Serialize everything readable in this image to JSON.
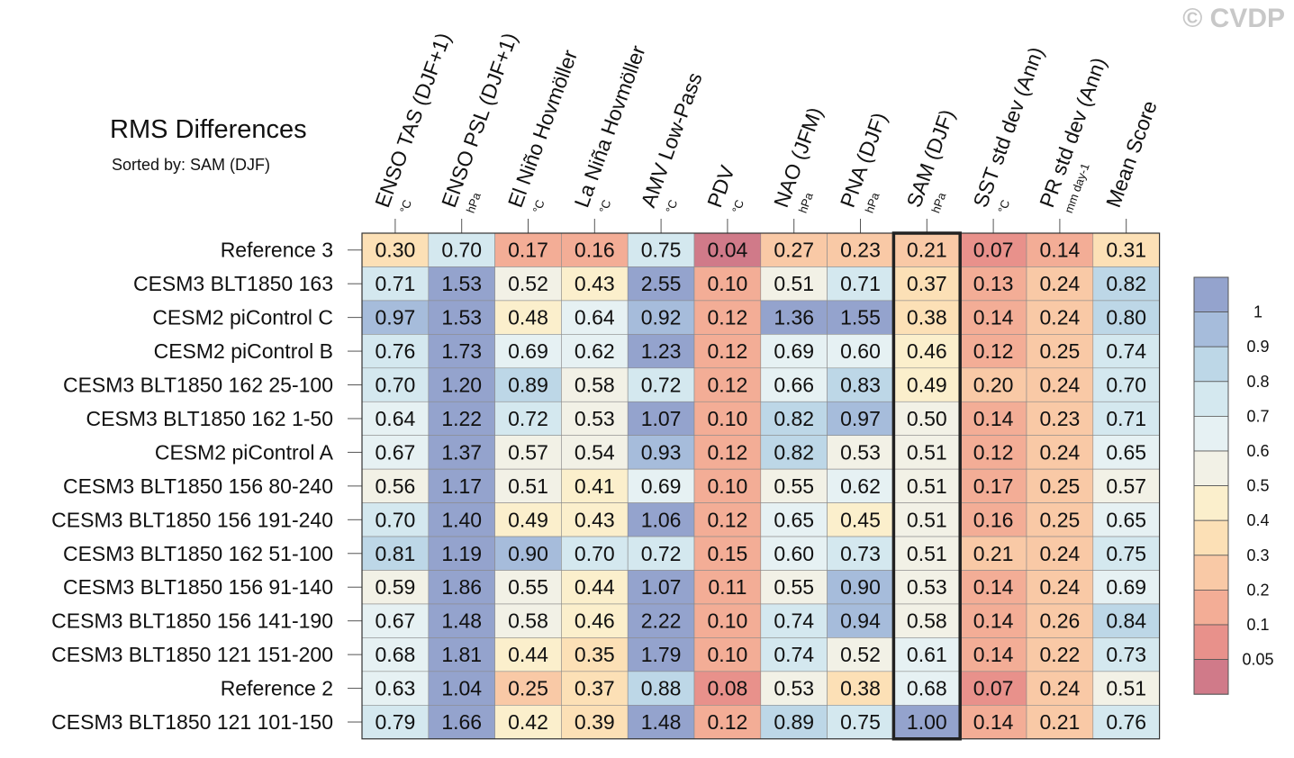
{
  "watermark": "© CVDP",
  "chart_data": {
    "type": "heatmap",
    "title": "RMS Differences",
    "subtitle": "Sorted by: SAM (DJF)",
    "highlighted_column": "SAM (DJF)",
    "columns": [
      {
        "label": "ENSO TAS (DJF+1)",
        "unit": "°C"
      },
      {
        "label": "ENSO PSL (DJF+1)",
        "unit": "hPa"
      },
      {
        "label": "El Niño Hovmöller",
        "unit": "°C"
      },
      {
        "label": "La Niña Hovmöller",
        "unit": "°C"
      },
      {
        "label": "AMV Low-Pass",
        "unit": "°C"
      },
      {
        "label": "PDV",
        "unit": "°C"
      },
      {
        "label": "NAO (JFM)",
        "unit": "hPa"
      },
      {
        "label": "PNA (DJF)",
        "unit": "hPa"
      },
      {
        "label": "SAM (DJF)",
        "unit": "hPa"
      },
      {
        "label": "SST std dev (Ann)",
        "unit": "°C"
      },
      {
        "label": "PR std dev (Ann)",
        "unit": "mm day-1"
      },
      {
        "label": "Mean Score",
        "unit": ""
      }
    ],
    "rows": [
      {
        "name": "Reference 3",
        "values": [
          0.3,
          0.7,
          0.17,
          0.16,
          0.75,
          0.04,
          0.27,
          0.23,
          0.21,
          0.07,
          0.14,
          0.31
        ]
      },
      {
        "name": "CESM3 BLT1850 163",
        "values": [
          0.71,
          1.53,
          0.52,
          0.43,
          2.55,
          0.1,
          0.51,
          0.71,
          0.37,
          0.13,
          0.24,
          0.82
        ]
      },
      {
        "name": "CESM2 piControl C",
        "values": [
          0.97,
          1.53,
          0.48,
          0.64,
          0.92,
          0.12,
          1.36,
          1.55,
          0.38,
          0.14,
          0.24,
          0.8
        ]
      },
      {
        "name": "CESM2 piControl B",
        "values": [
          0.76,
          1.73,
          0.69,
          0.62,
          1.23,
          0.12,
          0.69,
          0.6,
          0.46,
          0.12,
          0.25,
          0.74
        ]
      },
      {
        "name": "CESM3 BLT1850 162 25-100",
        "values": [
          0.7,
          1.2,
          0.89,
          0.58,
          0.72,
          0.12,
          0.66,
          0.83,
          0.49,
          0.2,
          0.24,
          0.7
        ]
      },
      {
        "name": "CESM3 BLT1850 162 1-50",
        "values": [
          0.64,
          1.22,
          0.72,
          0.53,
          1.07,
          0.1,
          0.82,
          0.97,
          0.5,
          0.14,
          0.23,
          0.71
        ]
      },
      {
        "name": "CESM2 piControl A",
        "values": [
          0.67,
          1.37,
          0.57,
          0.54,
          0.93,
          0.12,
          0.82,
          0.53,
          0.51,
          0.12,
          0.24,
          0.65
        ]
      },
      {
        "name": "CESM3 BLT1850 156 80-240",
        "values": [
          0.56,
          1.17,
          0.51,
          0.41,
          0.69,
          0.1,
          0.55,
          0.62,
          0.51,
          0.17,
          0.25,
          0.57
        ]
      },
      {
        "name": "CESM3 BLT1850 156 191-240",
        "values": [
          0.7,
          1.4,
          0.49,
          0.43,
          1.06,
          0.12,
          0.65,
          0.45,
          0.51,
          0.16,
          0.25,
          0.65
        ]
      },
      {
        "name": "CESM3 BLT1850 162 51-100",
        "values": [
          0.81,
          1.19,
          0.9,
          0.7,
          0.72,
          0.15,
          0.6,
          0.73,
          0.51,
          0.21,
          0.24,
          0.75
        ]
      },
      {
        "name": "CESM3 BLT1850 156 91-140",
        "values": [
          0.59,
          1.86,
          0.55,
          0.44,
          1.07,
          0.11,
          0.55,
          0.9,
          0.53,
          0.14,
          0.24,
          0.69
        ]
      },
      {
        "name": "CESM3 BLT1850 156 141-190",
        "values": [
          0.67,
          1.48,
          0.58,
          0.46,
          2.22,
          0.1,
          0.74,
          0.94,
          0.58,
          0.14,
          0.26,
          0.84
        ]
      },
      {
        "name": "CESM3 BLT1850 121 151-200",
        "values": [
          0.68,
          1.81,
          0.44,
          0.35,
          1.79,
          0.1,
          0.74,
          0.52,
          0.61,
          0.14,
          0.22,
          0.73
        ]
      },
      {
        "name": "Reference 2",
        "values": [
          0.63,
          1.04,
          0.25,
          0.37,
          0.88,
          0.08,
          0.53,
          0.38,
          0.68,
          0.07,
          0.24,
          0.51
        ]
      },
      {
        "name": "CESM3 BLT1850 121 101-150",
        "values": [
          0.79,
          1.66,
          0.42,
          0.39,
          1.48,
          0.12,
          0.89,
          0.75,
          1.0,
          0.14,
          0.21,
          0.76
        ]
      }
    ],
    "colorbar": {
      "labels": [
        "1",
        "0.9",
        "0.8",
        "0.7",
        "0.6",
        "0.5",
        "0.4",
        "0.3",
        "0.2",
        "0.1",
        "0.05"
      ],
      "colors": [
        "#94a3cd",
        "#a6bcdb",
        "#bdd7e7",
        "#d4e8ef",
        "#e6f1f3",
        "#f2f1e6",
        "#fbefcc",
        "#fce0b6",
        "#f9c9a6",
        "#f3ad96",
        "#e8918b",
        "#d07a89"
      ]
    }
  }
}
